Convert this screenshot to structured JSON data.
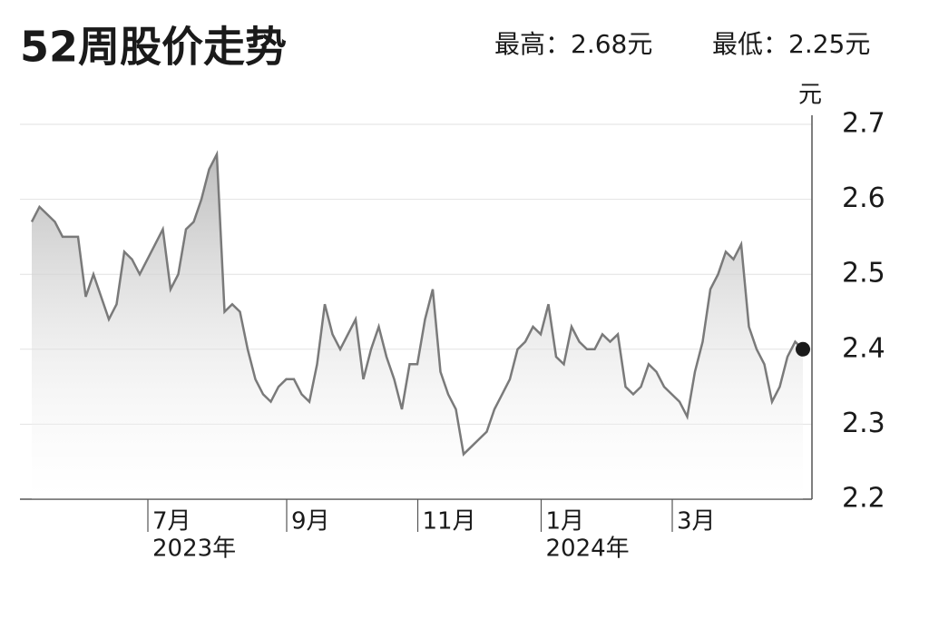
{
  "chart_data": {
    "type": "line",
    "title": "52周股价走势",
    "high_label": "最高：2.68元",
    "low_label": "最低：2.25元",
    "y_unit": "元",
    "categories": [
      null,
      null,
      null,
      null,
      null,
      null,
      null,
      null,
      null,
      null,
      null,
      null,
      null,
      null,
      null,
      null,
      "7月",
      null,
      null,
      null,
      null,
      null,
      null,
      null,
      null,
      null,
      null,
      null,
      null,
      null,
      null,
      null,
      null,
      null,
      "9月",
      null,
      null,
      null,
      null,
      null,
      null,
      null,
      null,
      null,
      null,
      null,
      null,
      null,
      null,
      null,
      null,
      "11月",
      null,
      null,
      null,
      null,
      null,
      null,
      null,
      null,
      null,
      null,
      null,
      null,
      null,
      null,
      null,
      "1月",
      null,
      null,
      null,
      null,
      null,
      null,
      null,
      null,
      null,
      null,
      null,
      null,
      null,
      null,
      null,
      null,
      "3月",
      null,
      null,
      null,
      null,
      null,
      null,
      null,
      null,
      null,
      null,
      null,
      null,
      null,
      null,
      null,
      null
    ],
    "years": [
      null,
      null,
      null,
      null,
      null,
      null,
      null,
      null,
      null,
      null,
      null,
      null,
      null,
      null,
      null,
      null,
      "2023年",
      null,
      null,
      null,
      null,
      null,
      null,
      null,
      null,
      null,
      null,
      null,
      null,
      null,
      null,
      null,
      null,
      null,
      null,
      null,
      null,
      null,
      null,
      null,
      null,
      null,
      null,
      null,
      null,
      null,
      null,
      null,
      null,
      null,
      null,
      null,
      null,
      null,
      null,
      null,
      null,
      null,
      null,
      null,
      null,
      null,
      null,
      null,
      null,
      null,
      null,
      "2024年",
      null,
      null,
      null,
      null,
      null,
      null,
      null,
      null,
      null,
      null,
      null,
      null,
      null,
      null,
      null,
      null,
      null,
      null,
      null,
      null,
      null,
      null,
      null,
      null,
      null,
      null,
      null,
      null,
      null,
      null,
      null,
      null
    ],
    "series": [
      {
        "name": "股价",
        "color": "#7a7a7a",
        "values": [
          2.57,
          2.59,
          2.58,
          2.57,
          2.55,
          2.55,
          2.55,
          2.47,
          2.5,
          2.47,
          2.44,
          2.46,
          2.53,
          2.52,
          2.5,
          2.52,
          2.54,
          2.56,
          2.48,
          2.5,
          2.56,
          2.57,
          2.6,
          2.64,
          2.66,
          2.45,
          2.46,
          2.45,
          2.4,
          2.36,
          2.34,
          2.33,
          2.35,
          2.36,
          2.36,
          2.34,
          2.33,
          2.38,
          2.46,
          2.42,
          2.4,
          2.42,
          2.44,
          2.36,
          2.4,
          2.43,
          2.39,
          2.36,
          2.32,
          2.38,
          2.38,
          2.44,
          2.48,
          2.37,
          2.34,
          2.32,
          2.26,
          2.27,
          2.28,
          2.29,
          2.32,
          2.34,
          2.36,
          2.4,
          2.41,
          2.43,
          2.42,
          2.46,
          2.39,
          2.38,
          2.43,
          2.41,
          2.4,
          2.4,
          2.42,
          2.41,
          2.42,
          2.35,
          2.34,
          2.35,
          2.38,
          2.37,
          2.35,
          2.34,
          2.33,
          2.31,
          2.37,
          2.41,
          2.48,
          2.5,
          2.53,
          2.52,
          2.54,
          2.43,
          2.4,
          2.38,
          2.33,
          2.35,
          2.39,
          2.41,
          2.4
        ]
      }
    ],
    "ylim": [
      2.2,
      2.7
    ],
    "yticks": [
      2.2,
      2.3,
      2.4,
      2.5,
      2.6,
      2.7
    ],
    "grid": true
  }
}
